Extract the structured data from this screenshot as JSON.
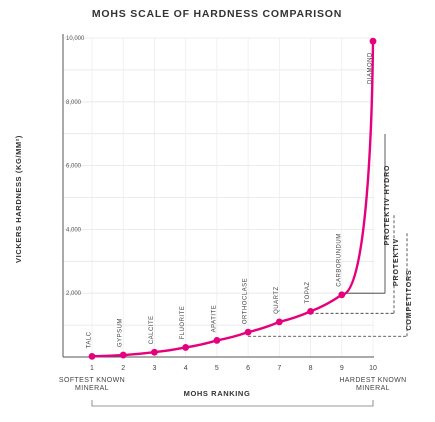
{
  "chart_data": {
    "type": "line",
    "title": "MOHS SCALE OF HARDNESS COMPARISON",
    "xlabel": "MOHS RANKING",
    "ylabel": "VICKERS HARDNESS (KG/MM²)",
    "xlim": [
      1,
      10
    ],
    "ylim": [
      0,
      10000
    ],
    "y_ticks": [
      {
        "value": 2000,
        "label": "2,000"
      },
      {
        "value": 4000,
        "label": "4,000"
      },
      {
        "value": 6000,
        "label": "6,000"
      },
      {
        "value": 8000,
        "label": "8,000"
      },
      {
        "value": 10000,
        "label": "10,000"
      }
    ],
    "x_ticks": [
      "1",
      "2",
      "3",
      "4",
      "5",
      "6",
      "7",
      "8",
      "9",
      "10"
    ],
    "grid": true,
    "color": "#e6007e",
    "series": [
      {
        "points": [
          {
            "x": 1,
            "y": 20,
            "label": "TALC"
          },
          {
            "x": 2,
            "y": 60,
            "label": "GYPSUM"
          },
          {
            "x": 3,
            "y": 150,
            "label": "CALCITE"
          },
          {
            "x": 4,
            "y": 300,
            "label": "FLUORITE"
          },
          {
            "x": 5,
            "y": 520,
            "label": "APATITE"
          },
          {
            "x": 6,
            "y": 780,
            "label": "ORTHOCLASE"
          },
          {
            "x": 7,
            "y": 1100,
            "label": "QUARTZ"
          },
          {
            "x": 8,
            "y": 1430,
            "label": "TOPAZ"
          },
          {
            "x": 9,
            "y": 1950,
            "label": "CARBORUNDUM"
          },
          {
            "x": 10,
            "y": 9900,
            "label": "DIAMOND"
          }
        ]
      }
    ],
    "annotations": {
      "softest": [
        "SOFTEST KNOWN",
        "MINERAL"
      ],
      "hardest": [
        "HARDEST KNOWN",
        "MINERAL"
      ]
    },
    "brands": [
      {
        "name": "PROTEKTIV HYDRO",
        "style": "solid",
        "from_value": 2000
      },
      {
        "name": "PROTEKTIV",
        "style": "dashed",
        "from_value": 1370
      },
      {
        "name": "COMPETITORS",
        "style": "dashed",
        "from_value": 650
      }
    ]
  }
}
